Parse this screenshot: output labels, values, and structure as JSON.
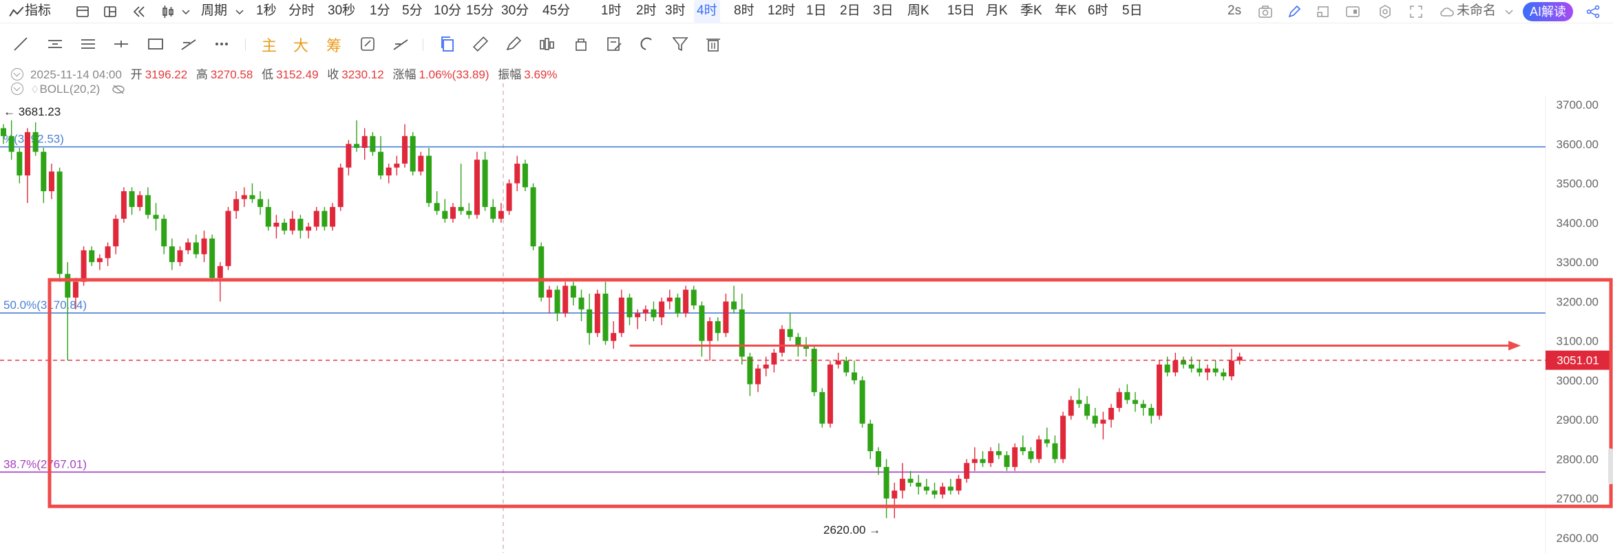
{
  "toolbar": {
    "indicator_label": "指标",
    "period_label": "周期",
    "intervals": [
      "1秒",
      "分时",
      "30秒",
      "1分",
      "5分",
      "10分",
      "15分",
      "30分",
      "45分",
      "1时",
      "2时",
      "3时",
      "4时",
      "8时",
      "12时",
      "1日",
      "2日",
      "3日",
      "周K",
      "15日",
      "月K",
      "季K",
      "年K",
      "6时",
      "5日"
    ],
    "active_interval": "4时",
    "refresh_label": "2s",
    "layout_name": "未命名",
    "ai_button": "AI解读"
  },
  "drawing_tools": {
    "text_tools": [
      "主",
      "大",
      "筹"
    ]
  },
  "info": {
    "datetime": "2025-11-14 04:00",
    "open_label": "开",
    "open": "3196.22",
    "high_label": "高",
    "high": "3270.58",
    "low_label": "低",
    "low": "3152.49",
    "close_label": "收",
    "close": "3230.12",
    "change_label": "涨幅",
    "change": "1.06%(33.89)",
    "amplitude_label": "振幅",
    "amplitude": "3.69%",
    "indicator": "BOLL(20,2)"
  },
  "colors": {
    "up": "#e0283b",
    "down": "#2ea316",
    "fib_line": "#4a7fd4",
    "fib_line_purple": "#a43fbf",
    "box": "#ef4b4b",
    "price_tag": "#e0283b"
  },
  "chart_data": {
    "type": "candlestick",
    "y_axis": {
      "ylim": [
        2600,
        3770
      ],
      "ticks": [
        3700,
        3600,
        3500,
        3400,
        3300,
        3200,
        3100,
        3000,
        2900,
        2800,
        2700,
        2600
      ],
      "tick_labels": [
        "3700.00",
        "3600.00",
        "3500.00",
        "3400.00",
        "3300.00",
        "3200.00",
        "3100.00",
        "3000.00",
        "2900.00",
        "2800.00",
        "2700.00",
        "2600.00"
      ]
    },
    "current_price": "3051.01",
    "max_label": "3681.23",
    "min_label": "2620.00",
    "fib_levels": [
      {
        "label": "%(3592.53)",
        "value": 3592.53,
        "color": "#4a7fd4"
      },
      {
        "label": "50.0%(3170.84)",
        "value": 3170.84,
        "color": "#4a7fd4"
      },
      {
        "label": "38.7%(2767.01)",
        "value": 2767.01,
        "color": "#a43fbf"
      }
    ],
    "annotations": {
      "box": {
        "from_index": 6,
        "to_index": 200,
        "top": 3255,
        "bottom": 2680
      },
      "arrow": {
        "from_index": 78,
        "to_index": 188,
        "value": 3088
      }
    },
    "ohlc": [
      [
        3640,
        3650,
        3600,
        3620
      ],
      [
        3620,
        3660,
        3560,
        3580
      ],
      [
        3580,
        3590,
        3500,
        3520
      ],
      [
        3520,
        3640,
        3450,
        3630
      ],
      [
        3630,
        3655,
        3570,
        3580
      ],
      [
        3580,
        3590,
        3450,
        3480
      ],
      [
        3480,
        3550,
        3460,
        3530
      ],
      [
        3530,
        3540,
        3250,
        3270
      ],
      [
        3270,
        3300,
        3050,
        3210
      ],
      [
        3210,
        3260,
        3180,
        3250
      ],
      [
        3250,
        3340,
        3240,
        3330
      ],
      [
        3330,
        3340,
        3290,
        3300
      ],
      [
        3300,
        3320,
        3280,
        3310
      ],
      [
        3310,
        3350,
        3290,
        3340
      ],
      [
        3340,
        3420,
        3320,
        3410
      ],
      [
        3410,
        3490,
        3400,
        3480
      ],
      [
        3480,
        3490,
        3420,
        3440
      ],
      [
        3440,
        3480,
        3430,
        3470
      ],
      [
        3470,
        3490,
        3410,
        3420
      ],
      [
        3420,
        3450,
        3380,
        3410
      ],
      [
        3410,
        3420,
        3320,
        3340
      ],
      [
        3340,
        3360,
        3280,
        3300
      ],
      [
        3300,
        3340,
        3290,
        3330
      ],
      [
        3330,
        3360,
        3320,
        3350
      ],
      [
        3350,
        3370,
        3310,
        3320
      ],
      [
        3320,
        3380,
        3300,
        3360
      ],
      [
        3360,
        3370,
        3250,
        3260
      ],
      [
        3260,
        3300,
        3200,
        3290
      ],
      [
        3290,
        3440,
        3280,
        3430
      ],
      [
        3430,
        3480,
        3410,
        3460
      ],
      [
        3460,
        3490,
        3440,
        3470
      ],
      [
        3470,
        3500,
        3450,
        3460
      ],
      [
        3460,
        3480,
        3420,
        3440
      ],
      [
        3440,
        3460,
        3380,
        3390
      ],
      [
        3390,
        3420,
        3360,
        3400
      ],
      [
        3400,
        3410,
        3370,
        3380
      ],
      [
        3380,
        3430,
        3370,
        3410
      ],
      [
        3410,
        3420,
        3360,
        3380
      ],
      [
        3380,
        3400,
        3360,
        3390
      ],
      [
        3390,
        3440,
        3380,
        3430
      ],
      [
        3430,
        3440,
        3380,
        3390
      ],
      [
        3390,
        3450,
        3380,
        3440
      ],
      [
        3440,
        3550,
        3430,
        3540
      ],
      [
        3540,
        3610,
        3520,
        3600
      ],
      [
        3600,
        3660,
        3580,
        3590
      ],
      [
        3590,
        3640,
        3560,
        3620
      ],
      [
        3620,
        3630,
        3570,
        3580
      ],
      [
        3580,
        3620,
        3510,
        3520
      ],
      [
        3520,
        3550,
        3500,
        3540
      ],
      [
        3540,
        3570,
        3520,
        3550
      ],
      [
        3550,
        3650,
        3540,
        3620
      ],
      [
        3620,
        3630,
        3520,
        3530
      ],
      [
        3530,
        3580,
        3520,
        3570
      ],
      [
        3570,
        3590,
        3440,
        3450
      ],
      [
        3450,
        3480,
        3420,
        3430
      ],
      [
        3430,
        3460,
        3400,
        3410
      ],
      [
        3410,
        3450,
        3400,
        3440
      ],
      [
        3440,
        3550,
        3420,
        3430
      ],
      [
        3430,
        3450,
        3410,
        3420
      ],
      [
        3420,
        3580,
        3410,
        3560
      ],
      [
        3560,
        3580,
        3430,
        3440
      ],
      [
        3440,
        3460,
        3400,
        3410
      ],
      [
        3410,
        3450,
        3400,
        3430
      ],
      [
        3430,
        3510,
        3420,
        3500
      ],
      [
        3500,
        3570,
        3480,
        3550
      ],
      [
        3550,
        3560,
        3480,
        3490
      ],
      [
        3490,
        3500,
        3330,
        3340
      ],
      [
        3340,
        3350,
        3200,
        3210
      ],
      [
        3210,
        3240,
        3170,
        3230
      ],
      [
        3230,
        3240,
        3150,
        3170
      ],
      [
        3170,
        3250,
        3160,
        3240
      ],
      [
        3240,
        3250,
        3190,
        3210
      ],
      [
        3210,
        3230,
        3150,
        3180
      ],
      [
        3180,
        3220,
        3090,
        3120
      ],
      [
        3120,
        3230,
        3110,
        3220
      ],
      [
        3220,
        3250,
        3090,
        3100
      ],
      [
        3100,
        3150,
        3080,
        3120
      ],
      [
        3120,
        3230,
        3110,
        3210
      ],
      [
        3210,
        3220,
        3140,
        3160
      ],
      [
        3160,
        3180,
        3130,
        3170
      ],
      [
        3170,
        3190,
        3150,
        3180
      ],
      [
        3180,
        3200,
        3150,
        3160
      ],
      [
        3160,
        3210,
        3140,
        3200
      ],
      [
        3200,
        3230,
        3180,
        3210
      ],
      [
        3210,
        3220,
        3160,
        3170
      ],
      [
        3170,
        3240,
        3160,
        3230
      ],
      [
        3230,
        3240,
        3180,
        3190
      ],
      [
        3190,
        3200,
        3060,
        3100
      ],
      [
        3100,
        3160,
        3050,
        3150
      ],
      [
        3150,
        3160,
        3100,
        3120
      ],
      [
        3120,
        3220,
        3110,
        3200
      ],
      [
        3200,
        3240,
        3170,
        3180
      ],
      [
        3180,
        3220,
        3040,
        3060
      ],
      [
        3060,
        3070,
        2960,
        2990
      ],
      [
        2990,
        3040,
        2970,
        3030
      ],
      [
        3030,
        3060,
        3010,
        3040
      ],
      [
        3040,
        3080,
        3020,
        3070
      ],
      [
        3070,
        3140,
        3060,
        3130
      ],
      [
        3130,
        3170,
        3100,
        3110
      ],
      [
        3110,
        3120,
        3060,
        3090
      ],
      [
        3090,
        3110,
        3060,
        3080
      ],
      [
        3080,
        3090,
        2960,
        2970
      ],
      [
        2970,
        2980,
        2880,
        2890
      ],
      [
        2890,
        3050,
        2880,
        3040
      ],
      [
        3040,
        3070,
        3030,
        3050
      ],
      [
        3050,
        3060,
        3010,
        3020
      ],
      [
        3020,
        3050,
        2990,
        3000
      ],
      [
        3000,
        3010,
        2880,
        2890
      ],
      [
        2890,
        2900,
        2800,
        2820
      ],
      [
        2820,
        2830,
        2760,
        2780
      ],
      [
        2780,
        2800,
        2650,
        2700
      ],
      [
        2700,
        2740,
        2650,
        2720
      ],
      [
        2720,
        2790,
        2700,
        2750
      ],
      [
        2750,
        2770,
        2730,
        2740
      ],
      [
        2740,
        2760,
        2710,
        2730
      ],
      [
        2730,
        2750,
        2710,
        2720
      ],
      [
        2720,
        2740,
        2700,
        2710
      ],
      [
        2710,
        2740,
        2700,
        2730
      ],
      [
        2730,
        2750,
        2710,
        2720
      ],
      [
        2720,
        2760,
        2710,
        2750
      ],
      [
        2750,
        2800,
        2740,
        2790
      ],
      [
        2790,
        2830,
        2770,
        2800
      ],
      [
        2800,
        2820,
        2780,
        2790
      ],
      [
        2790,
        2830,
        2780,
        2820
      ],
      [
        2820,
        2840,
        2800,
        2810
      ],
      [
        2810,
        2820,
        2770,
        2780
      ],
      [
        2780,
        2840,
        2770,
        2830
      ],
      [
        2830,
        2860,
        2810,
        2820
      ],
      [
        2820,
        2830,
        2790,
        2800
      ],
      [
        2800,
        2860,
        2790,
        2850
      ],
      [
        2850,
        2880,
        2830,
        2840
      ],
      [
        2840,
        2860,
        2790,
        2800
      ],
      [
        2800,
        2920,
        2790,
        2910
      ],
      [
        2910,
        2960,
        2900,
        2950
      ],
      [
        2950,
        2980,
        2930,
        2940
      ],
      [
        2940,
        2960,
        2900,
        2910
      ],
      [
        2910,
        2930,
        2880,
        2890
      ],
      [
        2890,
        2920,
        2850,
        2900
      ],
      [
        2900,
        2940,
        2880,
        2930
      ],
      [
        2930,
        2980,
        2920,
        2970
      ],
      [
        2970,
        2990,
        2940,
        2950
      ],
      [
        2950,
        2970,
        2920,
        2940
      ],
      [
        2940,
        2950,
        2910,
        2930
      ],
      [
        2930,
        2940,
        2890,
        2910
      ],
      [
        2910,
        3050,
        2900,
        3040
      ],
      [
        3040,
        3060,
        3010,
        3020
      ],
      [
        3020,
        3070,
        3010,
        3050
      ],
      [
        3050,
        3060,
        3030,
        3040
      ],
      [
        3040,
        3060,
        3020,
        3030
      ],
      [
        3030,
        3050,
        3010,
        3020
      ],
      [
        3020,
        3040,
        3000,
        3030
      ],
      [
        3030,
        3050,
        3010,
        3020
      ],
      [
        3020,
        3030,
        3000,
        3010
      ],
      [
        3010,
        3080,
        3000,
        3050
      ],
      [
        3050,
        3070,
        3040,
        3060
      ]
    ]
  }
}
